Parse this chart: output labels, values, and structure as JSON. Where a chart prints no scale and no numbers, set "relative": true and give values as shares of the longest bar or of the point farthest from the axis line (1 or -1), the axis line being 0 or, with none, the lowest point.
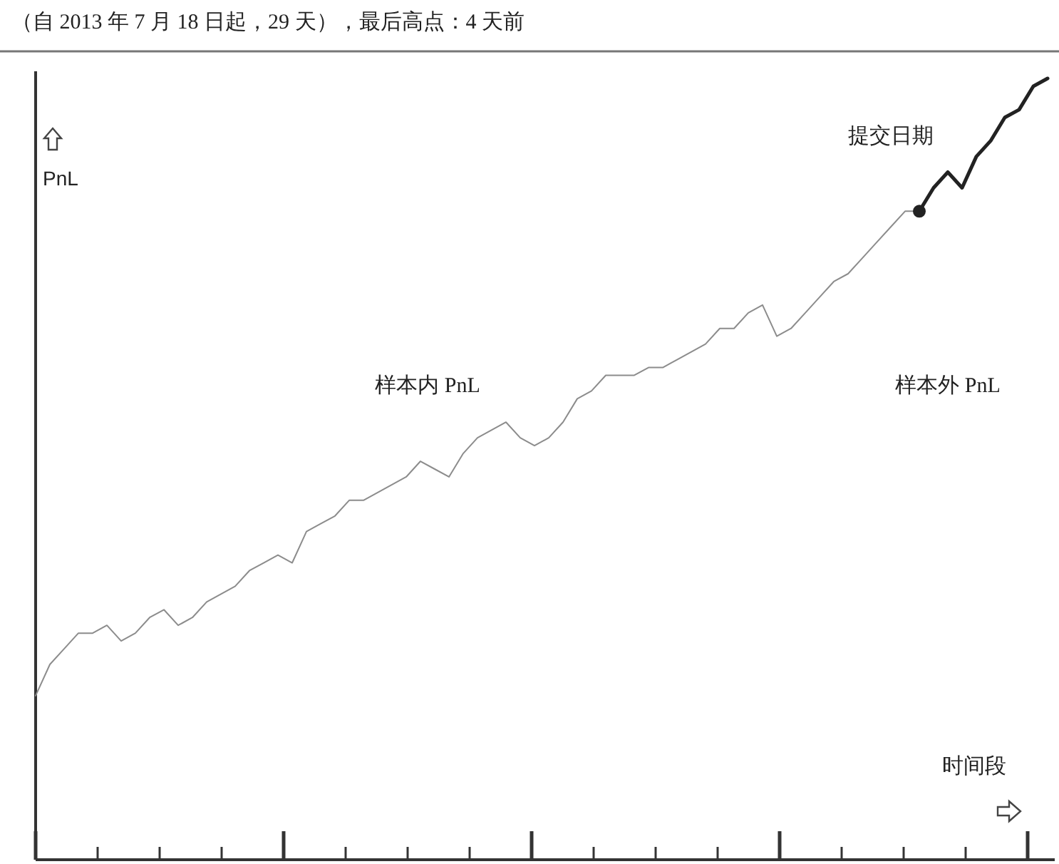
{
  "chart_data": {
    "type": "line",
    "relative": true,
    "title": "（自 2013 年 7 月 18 日起，29 天），最后高点：4 天前",
    "xlabel": "时间段",
    "ylabel": "PnL",
    "categories": [
      null,
      null,
      null,
      null,
      null,
      null,
      null,
      null,
      null,
      null,
      null,
      null,
      null,
      null,
      null,
      null,
      null,
      null,
      null,
      null,
      null,
      null,
      null,
      null,
      null,
      null,
      null,
      null,
      null,
      null,
      null,
      null,
      null,
      null,
      null,
      null,
      null,
      null,
      null,
      null,
      null,
      null,
      null,
      null,
      null,
      null,
      null,
      null,
      null,
      null,
      null,
      null,
      null,
      null,
      null,
      null,
      null,
      null,
      null,
      null,
      null,
      null,
      null,
      null,
      null,
      null,
      null,
      null,
      null,
      null,
      null,
      null
    ],
    "annotations": [
      "样本内 PnL",
      "样本外 PnL",
      "提交日期"
    ],
    "series": [
      {
        "color": "#8c8c8c",
        "values": [
          0.21,
          0.25,
          0.27,
          0.29,
          0.29,
          0.3,
          0.28,
          0.29,
          0.31,
          0.32,
          0.3,
          0.31,
          0.33,
          0.34,
          0.35,
          0.37,
          0.38,
          0.39,
          0.38,
          0.42,
          0.43,
          0.44,
          0.46,
          0.46,
          0.47,
          0.48,
          0.49,
          0.51,
          0.5,
          0.49,
          0.52,
          0.54,
          0.55,
          0.56,
          0.54,
          0.53,
          0.54,
          0.56,
          0.59,
          0.6,
          0.62,
          0.62,
          0.62,
          0.63,
          0.63,
          0.64,
          0.65,
          0.66,
          0.68,
          0.68,
          0.7,
          0.71,
          0.67,
          0.68,
          0.7,
          0.72,
          0.74,
          0.75,
          0.77,
          0.79,
          0.81,
          0.83,
          0.83,
          null,
          null,
          null,
          null,
          null,
          null,
          null,
          null,
          null
        ]
      },
      {
        "color": "#222222",
        "values": [
          null,
          null,
          null,
          null,
          null,
          null,
          null,
          null,
          null,
          null,
          null,
          null,
          null,
          null,
          null,
          null,
          null,
          null,
          null,
          null,
          null,
          null,
          null,
          null,
          null,
          null,
          null,
          null,
          null,
          null,
          null,
          null,
          null,
          null,
          null,
          null,
          null,
          null,
          null,
          null,
          null,
          null,
          null,
          null,
          null,
          null,
          null,
          null,
          null,
          null,
          null,
          null,
          null,
          null,
          null,
          null,
          null,
          null,
          null,
          null,
          null,
          null,
          0.83,
          0.86,
          0.88,
          0.86,
          0.9,
          0.92,
          0.95,
          0.96,
          0.99,
          1
        ]
      }
    ]
  }
}
